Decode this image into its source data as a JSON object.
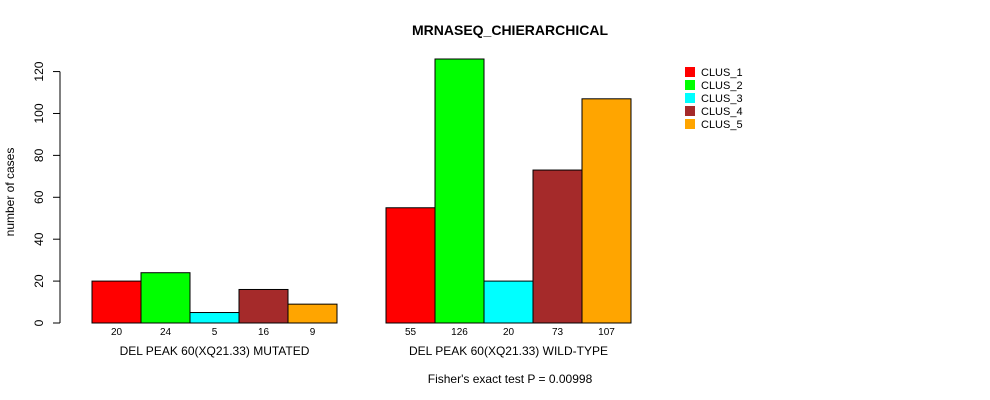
{
  "chart_data": {
    "type": "bar",
    "title": "MRNASEQ_CHIERARCHICAL",
    "ylabel": "number of cases",
    "xlabel": "",
    "ylim": [
      0,
      126
    ],
    "yticks": [
      0,
      20,
      40,
      60,
      80,
      100,
      120
    ],
    "groups": [
      "DEL PEAK 60(XQ21.33) MUTATED",
      "DEL PEAK 60(XQ21.33) WILD-TYPE"
    ],
    "series": [
      {
        "name": "CLUS_1",
        "color": "#ff0000",
        "values": [
          20,
          55
        ]
      },
      {
        "name": "CLUS_2",
        "color": "#00ff00",
        "values": [
          24,
          126
        ]
      },
      {
        "name": "CLUS_3",
        "color": "#00ffff",
        "values": [
          5,
          20
        ]
      },
      {
        "name": "CLUS_4",
        "color": "#a52a2a",
        "values": [
          16,
          73
        ]
      },
      {
        "name": "CLUS_5",
        "color": "#ffa500",
        "values": [
          9,
          107
        ]
      }
    ],
    "legend_position": "top-right",
    "annotation": "Fisher's exact test P = 0.00998"
  }
}
